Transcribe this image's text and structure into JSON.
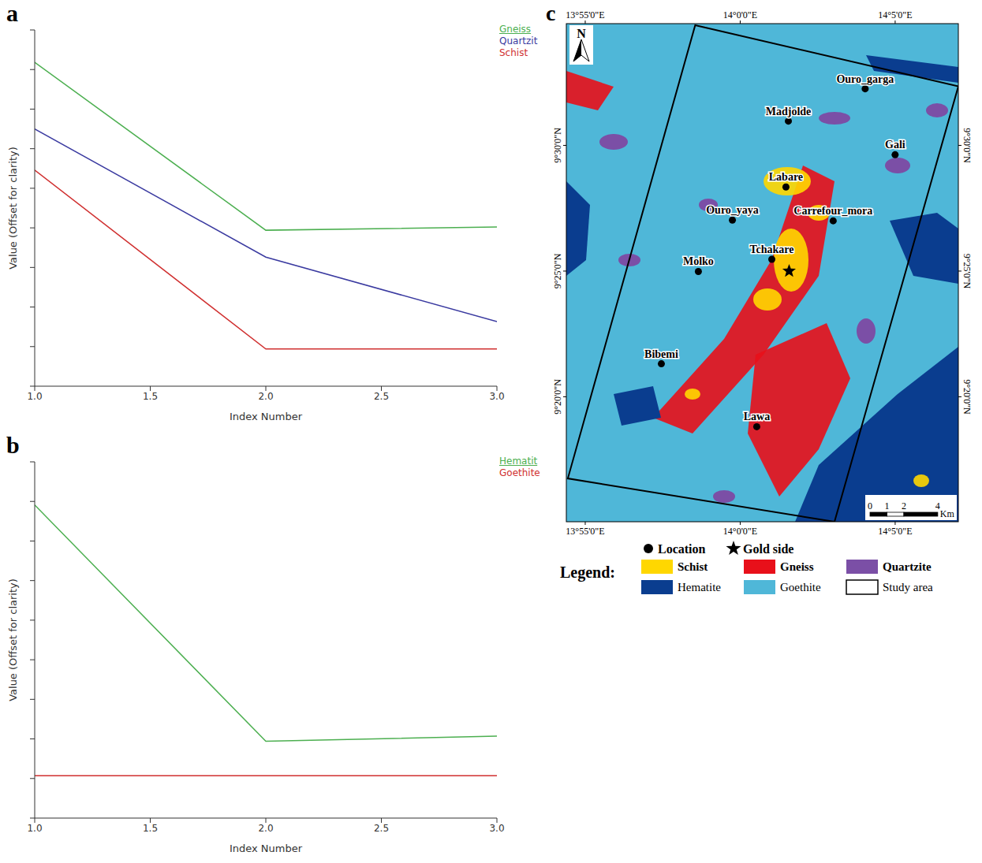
{
  "chart_data": [
    {
      "label": "a",
      "type": "line",
      "x_label": "Index Number",
      "y_label": "Value (Offset for clarity)",
      "x": [
        1,
        2,
        3
      ],
      "xlim": [
        1,
        3
      ],
      "xticks": [
        {
          "value": 1,
          "label": "1.0"
        },
        {
          "value": 1.5,
          "label": "1.5"
        },
        {
          "value": 2,
          "label": "2.0"
        },
        {
          "value": 2.5,
          "label": "2.5"
        },
        {
          "value": 3,
          "label": "3.0"
        }
      ],
      "ylim": [
        0,
        9
      ],
      "yticks": [
        0,
        1,
        2,
        3,
        4,
        5,
        6,
        7,
        8,
        9
      ],
      "tick_labels": "x",
      "grid": false,
      "legend": "top right",
      "series": [
        {
          "name": "Gneiss",
          "color": "#4caf50",
          "values": [
            8.18,
            3.94,
            4.02
          ]
        },
        {
          "name": "Quartzit",
          "color": "#3a3aa0",
          "values": [
            6.5,
            3.26,
            1.63
          ]
        },
        {
          "name": "Schist",
          "color": "#d03030",
          "values": [
            5.46,
            0.94,
            0.94
          ]
        }
      ]
    },
    {
      "label": "b",
      "type": "line",
      "x_label": "Index Number",
      "y_label": "Value (Offset for clarity)",
      "x": [
        1,
        2,
        3
      ],
      "xlim": [
        1,
        3
      ],
      "xticks": [
        {
          "value": 1,
          "label": "1.0"
        },
        {
          "value": 1.5,
          "label": "1.5"
        },
        {
          "value": 2,
          "label": "2.0"
        },
        {
          "value": 2.5,
          "label": "2.5"
        },
        {
          "value": 3,
          "label": "3.0"
        }
      ],
      "ylim": [
        0,
        9
      ],
      "yticks": [
        0,
        1,
        2,
        3,
        4,
        5,
        6,
        7,
        8,
        9
      ],
      "tick_labels": "x",
      "grid": false,
      "legend": "top right",
      "series": [
        {
          "name": "Hematit",
          "color": "#4caf50",
          "values": [
            7.91,
            1.94,
            2.07
          ]
        },
        {
          "name": "Goethite",
          "color": "#d03030",
          "values": [
            1.07,
            1.07,
            1.07
          ]
        }
      ]
    }
  ],
  "map": {
    "label": "c",
    "north": "N",
    "xlim": [
      13.9065,
      14.1173
    ],
    "ylim": [
      9.2505,
      9.5807
    ],
    "xticks": [
      {
        "value": 13.916667,
        "label": "13°55'0\"E"
      },
      {
        "value": 14.0,
        "label": "14°0'0\"E"
      },
      {
        "value": 14.083333,
        "label": "14°5'0\"E"
      }
    ],
    "yticks": [
      {
        "value": 9.333333,
        "label": "9°20'0\"N"
      },
      {
        "value": 9.416667,
        "label": "9°25'0\"N"
      },
      {
        "value": 9.5,
        "label": "9°30'0\"N"
      }
    ],
    "study_area": [
      [
        13.9758,
        9.5797
      ],
      [
        14.1173,
        9.5391
      ],
      [
        14.0507,
        9.2505
      ],
      [
        13.9073,
        9.2792
      ]
    ],
    "locations": [
      {
        "name": "Ouro_garga",
        "lon": 14.0672,
        "lat": 9.5375
      },
      {
        "name": "Madjolde",
        "lon": 14.0259,
        "lat": 9.5161
      },
      {
        "name": "Gali",
        "lon": 14.0833,
        "lat": 9.4938
      },
      {
        "name": "Labare",
        "lon": 14.0246,
        "lat": 9.4724
      },
      {
        "name": "Ouro_yaya",
        "lon": 13.9958,
        "lat": 9.4505
      },
      {
        "name": "Carrefour_mora",
        "lon": 14.05,
        "lat": 9.45
      },
      {
        "name": "Tchakare",
        "lon": 14.017,
        "lat": 9.4245
      },
      {
        "name": "Molko",
        "lon": 13.9775,
        "lat": 9.4164
      },
      {
        "name": "Bibemi",
        "lon": 13.9576,
        "lat": 9.3552
      },
      {
        "name": "Lawa",
        "lon": 14.0089,
        "lat": 9.3135
      }
    ],
    "gold_site": {
      "lon": 14.0263,
      "lat": 9.4167
    },
    "scale_bar": {
      "ticks": [
        0,
        1,
        2,
        4
      ],
      "unit": "Km"
    },
    "legend_title": "Legend:",
    "legend_items": [
      {
        "name": "Location",
        "marker": "circle"
      },
      {
        "name": "Gold side",
        "marker": "star"
      },
      {
        "name": "Schist",
        "color": "#ffd700"
      },
      {
        "name": "Gneiss",
        "color": "#e8101a"
      },
      {
        "name": "Quartzite",
        "color": "#7b4fa6"
      },
      {
        "name": "Hematite",
        "color": "#0a3d8f"
      },
      {
        "name": "Goethite",
        "color": "#4fb7d8"
      },
      {
        "name": "Study area",
        "marker": "outline"
      }
    ]
  }
}
